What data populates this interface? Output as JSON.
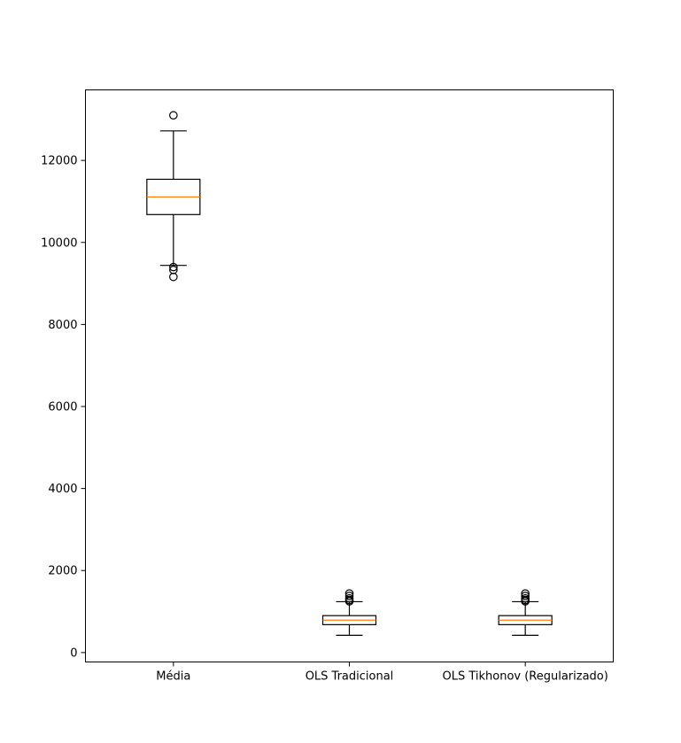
{
  "chart_data": {
    "type": "boxplot",
    "title": "",
    "xlabel": "",
    "ylabel": "",
    "ylim": [
      -230,
      13720
    ],
    "yticks": [
      0,
      2000,
      4000,
      6000,
      8000,
      10000,
      12000
    ],
    "categories": [
      "Média",
      "OLS Tradicional",
      "OLS Tikhonov (Regularizado)"
    ],
    "boxes": [
      {
        "name": "Média",
        "whislo": 9440,
        "q1": 10680,
        "med": 11110,
        "q3": 11540,
        "whishi": 12720,
        "fliers": [
          13100,
          9400,
          9330,
          9160
        ]
      },
      {
        "name": "OLS Tradicional",
        "whislo": 420,
        "q1": 680,
        "med": 790,
        "q3": 900,
        "whishi": 1240,
        "fliers": [
          1250,
          1280,
          1320,
          1380,
          1440
        ]
      },
      {
        "name": "OLS Tikhonov (Regularizado)",
        "whislo": 420,
        "q1": 680,
        "med": 790,
        "q3": 900,
        "whishi": 1240,
        "fliers": [
          1250,
          1280,
          1320,
          1380,
          1440
        ]
      }
    ],
    "colors": {
      "box": "#000000",
      "median": "#ff7f0e",
      "flier": "#000000"
    },
    "grid": false,
    "legend": "none"
  }
}
